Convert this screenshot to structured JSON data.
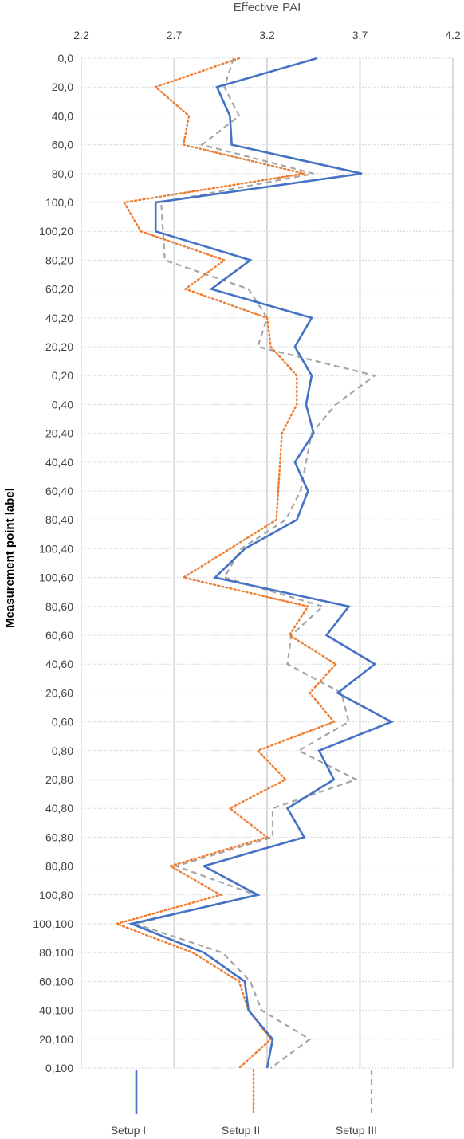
{
  "chart_data": {
    "type": "line",
    "orientation": "vertical-categories",
    "xlabel": "Effective  PAI",
    "ylabel": "Measurement point  label",
    "xlim": [
      2.2,
      4.2
    ],
    "xticks": [
      "2.2",
      "2.7",
      "3.2",
      "3.7",
      "4.2"
    ],
    "grid": {
      "vertical_major": true,
      "horizontal_dotted": true
    },
    "legend_position": "bottom",
    "categories": [
      "0,0",
      "20,0",
      "40,0",
      "60,0",
      "80,0",
      "100,0",
      "100,20",
      "80,20",
      "60,20",
      "40,20",
      "20,20",
      "0,20",
      "0,40",
      "20,40",
      "40,40",
      "60,40",
      "80,40",
      "100,40",
      "100,60",
      "80,60",
      "60,60",
      "40,60",
      "20,60",
      "0,60",
      "0,80",
      "20,80",
      "40,80",
      "60,80",
      "80,80",
      "100,80",
      "100,100",
      "80,100",
      "60,100",
      "40,100",
      "20,100",
      "0,100"
    ],
    "series": [
      {
        "name": "Setup I",
        "color": "#4472c4",
        "dash": "solid",
        "values": [
          3.47,
          2.93,
          3.0,
          3.01,
          3.71,
          2.6,
          2.6,
          3.11,
          2.9,
          3.44,
          3.35,
          3.44,
          3.41,
          3.45,
          3.35,
          3.42,
          3.36,
          3.08,
          2.92,
          3.64,
          3.52,
          3.78,
          3.58,
          3.87,
          3.48,
          3.56,
          3.31,
          3.4,
          2.86,
          3.15,
          2.47,
          2.86,
          3.08,
          3.1,
          3.23,
          3.2
        ]
      },
      {
        "name": "Setup II",
        "color": "#ed7d31",
        "dash": "dotted",
        "values": [
          3.05,
          2.6,
          2.78,
          2.75,
          3.4,
          2.43,
          2.52,
          2.97,
          2.76,
          3.2,
          3.22,
          3.36,
          3.36,
          3.28,
          3.27,
          3.26,
          3.25,
          3.0,
          2.75,
          3.42,
          3.32,
          3.57,
          3.43,
          3.56,
          3.15,
          3.3,
          3.0,
          3.2,
          2.68,
          2.95,
          2.39,
          2.8,
          3.05,
          3.1,
          3.22,
          3.05
        ]
      },
      {
        "name": "Setup III",
        "color": "#a5a5a5",
        "dash": "dashed",
        "values": [
          3.02,
          2.97,
          3.05,
          2.85,
          3.45,
          2.63,
          2.64,
          2.65,
          3.1,
          3.2,
          3.15,
          3.78,
          3.57,
          3.44,
          3.41,
          3.38,
          3.3,
          3.06,
          2.97,
          3.5,
          3.33,
          3.31,
          3.6,
          3.64,
          3.37,
          3.68,
          3.23,
          3.23,
          2.71,
          3.14,
          2.49,
          2.96,
          3.11,
          3.17,
          3.43,
          3.22
        ]
      }
    ]
  }
}
